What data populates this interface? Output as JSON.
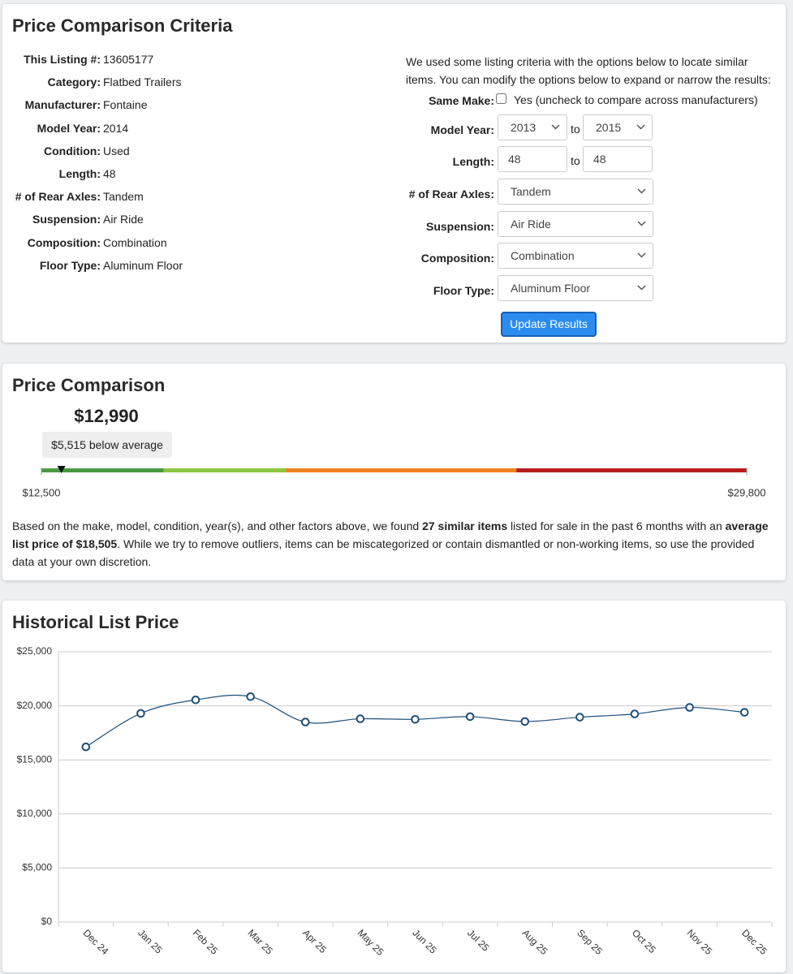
{
  "criteria": {
    "title": "Price Comparison Criteria",
    "listing": [
      {
        "label": "This Listing #:",
        "value": "13605177"
      },
      {
        "label": "Category:",
        "value": "Flatbed Trailers"
      },
      {
        "label": "Manufacturer:",
        "value": "Fontaine"
      },
      {
        "label": "Model Year:",
        "value": "2014"
      },
      {
        "label": "Condition:",
        "value": "Used"
      },
      {
        "label": "Length:",
        "value": "48"
      },
      {
        "label": "# of Rear Axles:",
        "value": "Tandem"
      },
      {
        "label": "Suspension:",
        "value": "Air Ride"
      },
      {
        "label": "Composition:",
        "value": "Combination"
      },
      {
        "label": "Floor Type:",
        "value": "Aluminum Floor"
      }
    ],
    "intro": "We used some listing criteria with the options below to locate similar items. You can modify the options below to expand or narrow the results:",
    "same_make": {
      "label": "Same Make:",
      "checked": false,
      "text": "Yes (uncheck to compare across manufacturers)"
    },
    "model_year": {
      "label": "Model Year:",
      "from": "2013",
      "sep": "to",
      "to": "2015"
    },
    "length": {
      "label": "Length:",
      "from": "48",
      "sep": "to",
      "to": "48"
    },
    "selects": [
      {
        "label": "# of Rear Axles:",
        "value": "Tandem"
      },
      {
        "label": "Suspension:",
        "value": "Air Ride"
      },
      {
        "label": "Composition:",
        "value": "Combination"
      },
      {
        "label": "Floor Type:",
        "value": "Aluminum Floor"
      }
    ],
    "button": "Update Results"
  },
  "comparison": {
    "title": "Price Comparison",
    "price": {
      "value": 12990,
      "label": "$12,990"
    },
    "badge": "$5,515 below average",
    "min": {
      "value": 12500,
      "label": "$12,500"
    },
    "max": {
      "value": 29800,
      "label": "$29,800"
    },
    "breaks": [
      15500,
      18500,
      24150
    ],
    "colors": [
      "#4a9a45",
      "#8dc63f",
      "#f0811e",
      "#b81d1d"
    ],
    "note": [
      {
        "text": "Based on the make, model, condition, year(s), and other factors above, we found "
      },
      {
        "text": "27 similar items",
        "bold": true
      },
      {
        "text": " listed for sale in the past 6 months with an "
      },
      {
        "text": "average list price of $18,505",
        "bold": true
      },
      {
        "text": ". While we try to remove outliers, items can be miscategorized or contain dismantled or non-working items, so use the provided data at your own discretion."
      }
    ]
  },
  "chart_data": {
    "type": "line",
    "title": "Historical List Price",
    "categories": [
      "Dec 24",
      "Jan 25",
      "Feb 25",
      "Mar 25",
      "Apr 25",
      "May 25",
      "Jun 25",
      "Jul 25",
      "Aug 25",
      "Sep 25",
      "Oct 25",
      "Nov 25",
      "Dec 25"
    ],
    "values": [
      16200,
      19300,
      20550,
      20850,
      18500,
      18800,
      18750,
      19000,
      18550,
      18950,
      19250,
      19850,
      19400
    ],
    "color": "#1f4e79",
    "ylim": [
      0,
      25000
    ],
    "yticks": [
      {
        "value": 0,
        "label": "$0"
      },
      {
        "value": 5000,
        "label": "$5,000"
      },
      {
        "value": 10000,
        "label": "$10,000"
      },
      {
        "value": 15000,
        "label": "$15,000"
      },
      {
        "value": 20000,
        "label": "$20,000"
      },
      {
        "value": 25000,
        "label": "$25,000"
      }
    ],
    "grid": true
  }
}
